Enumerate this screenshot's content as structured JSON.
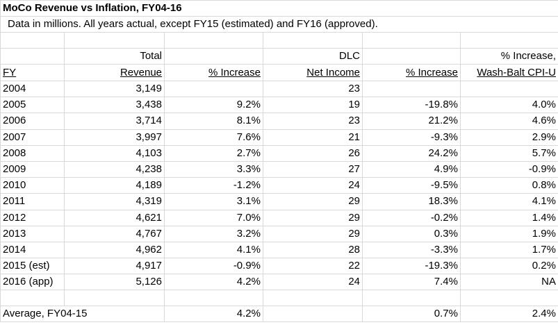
{
  "title": "MoCo Revenue vs Inflation, FY04-16",
  "note": "Data in millions.  All years actual, except FY15 (estimated) and FY16 (approved).",
  "headers": {
    "row1": [
      "",
      "Total",
      "",
      "DLC",
      "",
      "% Increase,"
    ],
    "row2": [
      "FY",
      "Revenue",
      "% Increase",
      "Net Income",
      "% Increase",
      "Wash-Balt CPI-U"
    ]
  },
  "rows": [
    {
      "fy": "2004",
      "revenue": "3,149",
      "rev_pct": "",
      "dlc": "23",
      "dlc_pct": "",
      "cpi": ""
    },
    {
      "fy": "2005",
      "revenue": "3,438",
      "rev_pct": "9.2%",
      "dlc": "19",
      "dlc_pct": "-19.8%",
      "cpi": "4.0%"
    },
    {
      "fy": "2006",
      "revenue": "3,714",
      "rev_pct": "8.1%",
      "dlc": "23",
      "dlc_pct": "21.2%",
      "cpi": "4.6%"
    },
    {
      "fy": "2007",
      "revenue": "3,997",
      "rev_pct": "7.6%",
      "dlc": "21",
      "dlc_pct": "-9.3%",
      "cpi": "2.9%"
    },
    {
      "fy": "2008",
      "revenue": "4,103",
      "rev_pct": "2.7%",
      "dlc": "26",
      "dlc_pct": "24.2%",
      "cpi": "5.7%"
    },
    {
      "fy": "2009",
      "revenue": "4,238",
      "rev_pct": "3.3%",
      "dlc": "27",
      "dlc_pct": "4.9%",
      "cpi": "-0.9%"
    },
    {
      "fy": "2010",
      "revenue": "4,189",
      "rev_pct": "-1.2%",
      "dlc": "24",
      "dlc_pct": "-9.5%",
      "cpi": "0.8%"
    },
    {
      "fy": "2011",
      "revenue": "4,319",
      "rev_pct": "3.1%",
      "dlc": "29",
      "dlc_pct": "18.3%",
      "cpi": "4.1%"
    },
    {
      "fy": "2012",
      "revenue": "4,621",
      "rev_pct": "7.0%",
      "dlc": "29",
      "dlc_pct": "-0.2%",
      "cpi": "1.4%"
    },
    {
      "fy": "2013",
      "revenue": "4,767",
      "rev_pct": "3.2%",
      "dlc": "29",
      "dlc_pct": "0.3%",
      "cpi": "1.9%"
    },
    {
      "fy": "2014",
      "revenue": "4,962",
      "rev_pct": "4.1%",
      "dlc": "28",
      "dlc_pct": "-3.3%",
      "cpi": "1.7%"
    },
    {
      "fy": "2015 (est)",
      "revenue": "4,917",
      "rev_pct": "-0.9%",
      "dlc": "22",
      "dlc_pct": "-19.3%",
      "cpi": "0.2%"
    },
    {
      "fy": "2016 (app)",
      "revenue": "5,126",
      "rev_pct": "4.2%",
      "dlc": "24",
      "dlc_pct": "7.4%",
      "cpi": "NA"
    }
  ],
  "average": {
    "label": "Average, FY04-15",
    "rev_pct": "4.2%",
    "dlc_pct": "0.7%",
    "cpi": "2.4%"
  }
}
